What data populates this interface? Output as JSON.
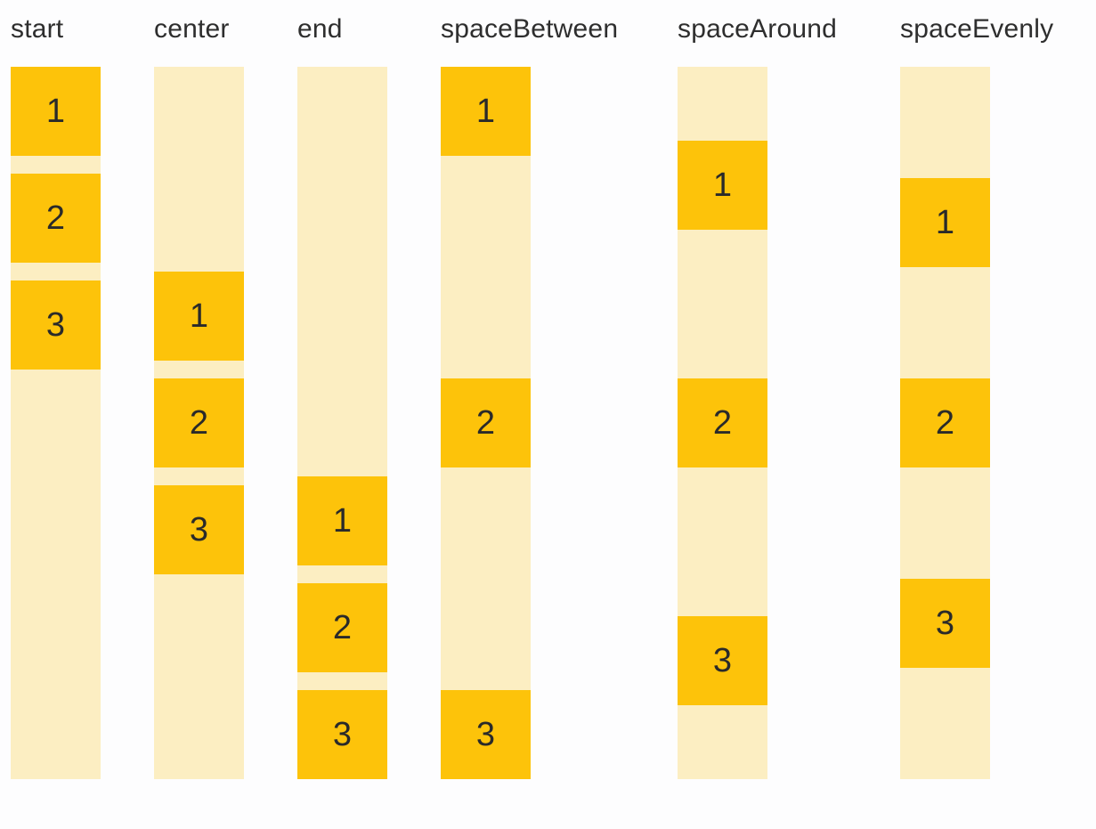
{
  "colors": {
    "background": "#FDFDFE",
    "box": "#FDC30A",
    "track": "#FCEEC2",
    "label_text": "#2E2E2E",
    "digit_text": "#2A2A2A"
  },
  "columns": [
    {
      "label": "start",
      "justify": "flex-start",
      "gapped": true,
      "boxes": [
        "1",
        "2",
        "3"
      ]
    },
    {
      "label": "center",
      "justify": "center",
      "gapped": true,
      "boxes": [
        "1",
        "2",
        "3"
      ]
    },
    {
      "label": "end",
      "justify": "flex-end",
      "gapped": true,
      "boxes": [
        "1",
        "2",
        "3"
      ]
    },
    {
      "label": "spaceBetween",
      "justify": "space-between",
      "gapped": false,
      "boxes": [
        "1",
        "2",
        "3"
      ]
    },
    {
      "label": "spaceAround",
      "justify": "space-around",
      "gapped": false,
      "boxes": [
        "1",
        "2",
        "3"
      ]
    },
    {
      "label": "spaceEvenly",
      "justify": "space-evenly",
      "gapped": false,
      "boxes": [
        "1",
        "2",
        "3"
      ]
    }
  ]
}
